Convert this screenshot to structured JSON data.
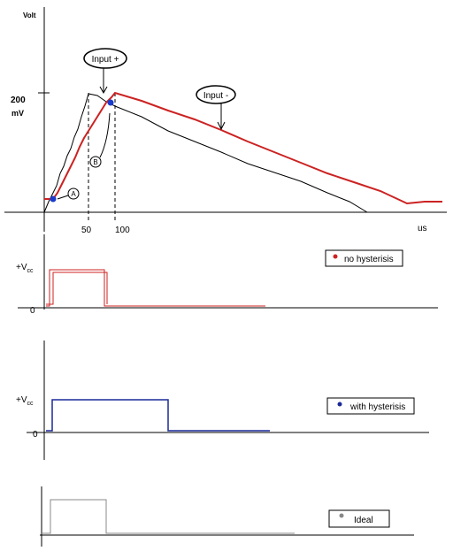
{
  "top_plot": {
    "y_label": "Volt",
    "tick_value": "200",
    "tick_unit": "mV",
    "x_ticks": [
      "50",
      "100"
    ],
    "x_unit": "us",
    "callouts": [
      "Input +",
      "Input -"
    ],
    "points": [
      "A",
      "B"
    ]
  },
  "panels": [
    {
      "level_label": "+V",
      "level_sub": "cc",
      "zero_label": "0",
      "legend": "no hysterisis"
    },
    {
      "level_label": "+V",
      "level_sub": "cc",
      "zero_label": "0",
      "legend": "with hysterisis"
    },
    {
      "legend": "Ideal"
    }
  ]
}
